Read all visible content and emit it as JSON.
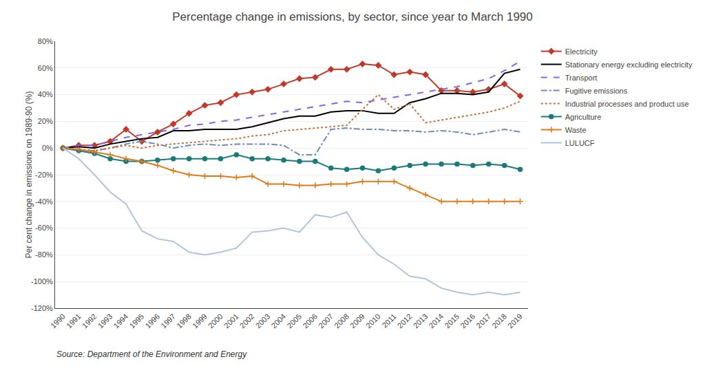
{
  "chart_data": {
    "type": "line",
    "title": "Percentage change in emissions, by sector, since year to March 1990",
    "y_label": "Per cent change in emissions on 1989-90 (%)",
    "annotations": [
      "Source: Department of the Environment and Energy"
    ],
    "x": [
      1990,
      1991,
      1992,
      1993,
      1994,
      1995,
      1996,
      1997,
      1998,
      1999,
      2000,
      2001,
      2002,
      2003,
      2004,
      2005,
      2006,
      2007,
      2008,
      2009,
      2010,
      2011,
      2012,
      2013,
      2014,
      2015,
      2016,
      2017,
      2018,
      2019
    ],
    "series": [
      {
        "name": "Electricity",
        "color": "#c0392b",
        "line_style": "solid",
        "marker": "diamond",
        "values": [
          0,
          2,
          2,
          5,
          14,
          5,
          12,
          18,
          26,
          32,
          34,
          40,
          42,
          44,
          48,
          52,
          53,
          59,
          59,
          63,
          62,
          55,
          57,
          55,
          43,
          43,
          42,
          44,
          48,
          39
        ]
      },
      {
        "name": "Stationary energy excluding electricity",
        "color": "#000000",
        "line_style": "solid",
        "values": [
          0,
          1,
          0,
          3,
          5,
          7,
          8,
          13,
          13,
          14,
          14,
          14,
          16,
          19,
          22,
          24,
          24,
          27,
          28,
          28,
          26,
          26,
          34,
          37,
          41,
          41,
          40,
          42,
          56,
          59
        ]
      },
      {
        "name": "Transport",
        "color": "#7b68ee",
        "line_style": "dash",
        "values": [
          0,
          2,
          2,
          5,
          8,
          10,
          12,
          14,
          17,
          18,
          20,
          21,
          23,
          25,
          27,
          29,
          31,
          33,
          35,
          34,
          36,
          38,
          40,
          42,
          44,
          46,
          49,
          52,
          58,
          65
        ]
      },
      {
        "name": "Fugitive emissions",
        "color": "#6b8cba",
        "line_style": "dashdot",
        "values": [
          0,
          -1,
          -2,
          0,
          3,
          5,
          3,
          0,
          2,
          3,
          2,
          3,
          3,
          3,
          2,
          -5,
          -5,
          14,
          15,
          14,
          14,
          13,
          13,
          12,
          13,
          12,
          10,
          12,
          14,
          12
        ]
      },
      {
        "name": "Industrial processes and product use",
        "color": "#c87137",
        "line_style": "dot",
        "values": [
          0,
          -1,
          -2,
          0,
          2,
          0,
          2,
          3,
          4,
          5,
          6,
          7,
          9,
          10,
          13,
          14,
          15,
          16,
          17,
          29,
          40,
          29,
          33,
          19,
          21,
          23,
          25,
          27,
          30,
          35
        ]
      },
      {
        "name": "Agriculture",
        "color": "#1a7a7a",
        "line_style": "solid",
        "marker": "circle",
        "values": [
          0,
          -2,
          -4,
          -8,
          -10,
          -10,
          -9,
          -8,
          -8,
          -8,
          -8,
          -5,
          -8,
          -8,
          -9,
          -10,
          -10,
          -15,
          -16,
          -15,
          -17,
          -15,
          -13,
          -12,
          -12,
          -12,
          -13,
          -12,
          -13,
          -16
        ]
      },
      {
        "name": "Waste",
        "color": "#e07b1a",
        "line_style": "solid",
        "marker": "plus",
        "values": [
          0,
          -1,
          -3,
          -5,
          -8,
          -10,
          -13,
          -17,
          -20,
          -21,
          -21,
          -22,
          -21,
          -27,
          -27,
          -28,
          -28,
          -27,
          -27,
          -25,
          -25,
          -25,
          -30,
          -35,
          -40,
          -40,
          -40,
          -40,
          -40,
          -40
        ]
      },
      {
        "name": "LULUCF",
        "color": "#b0c4de",
        "line_style": "solid",
        "values": [
          0,
          -8,
          -20,
          -33,
          -42,
          -62,
          -68,
          -70,
          -78,
          -80,
          -78,
          -75,
          -63,
          -62,
          -60,
          -63,
          -50,
          -52,
          -48,
          -67,
          -80,
          -87,
          -96,
          -98,
          -105,
          -108,
          -110,
          -108,
          -110,
          -108
        ]
      }
    ],
    "xlim": [
      1989.5,
      2019.5
    ],
    "xticks": [
      1990,
      1991,
      1992,
      1993,
      1994,
      1995,
      1996,
      1997,
      1998,
      1999,
      2000,
      2001,
      2002,
      2003,
      2004,
      2005,
      2006,
      2007,
      2008,
      2009,
      2010,
      2011,
      2012,
      2013,
      2014,
      2015,
      2016,
      2017,
      2018,
      2019
    ],
    "ylim": [
      -120,
      80
    ],
    "yticks": [
      {
        "value": -120,
        "label": "-120%"
      },
      {
        "value": -100,
        "label": "-100%"
      },
      {
        "value": -80,
        "label": "-80%"
      },
      {
        "value": -60,
        "label": "-60%"
      },
      {
        "value": -40,
        "label": "-40%"
      },
      {
        "value": -20,
        "label": "-20%"
      },
      {
        "value": 0,
        "label": "0%"
      },
      {
        "value": 20,
        "label": "20%"
      },
      {
        "value": 40,
        "label": "40%"
      },
      {
        "value": 60,
        "label": "60%"
      },
      {
        "value": 80,
        "label": "80%"
      }
    ],
    "grid": "y",
    "legend": "right"
  }
}
